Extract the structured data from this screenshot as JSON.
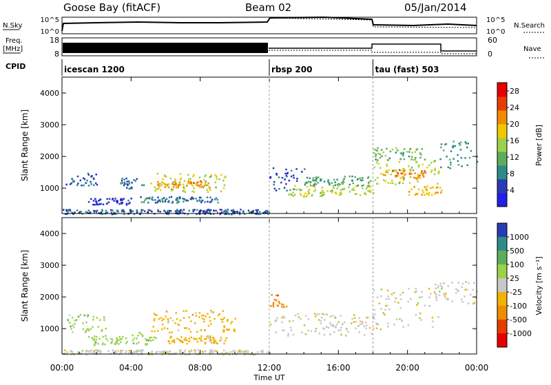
{
  "header": {
    "station": "Goose Bay (fitACF)",
    "beam": "Beam 02",
    "date": "05/Jan/2014"
  },
  "strip_labels": {
    "nsky": "N.Sky",
    "nsky_top": "10^5",
    "nsky_bottom": "10^0",
    "nsearch": "N.Search",
    "nsearch_top": "10^5",
    "nsearch_bottom": "10^0",
    "freq_1": "Freq.",
    "freq_2": "[MHz]",
    "freq_top": "18",
    "freq_bottom": "8",
    "nave": "Nave",
    "nave_top": "60",
    "nave_bottom": "0",
    "cpid": "CPID"
  },
  "cpid_segments": [
    {
      "label": "icescan 1200",
      "start_h": 0
    },
    {
      "label": "rbsp 200",
      "start_h": 12
    },
    {
      "label": "tau (fast) 503",
      "start_h": 18
    }
  ],
  "colors": {
    "power": [
      "#1f1fe6",
      "#2a3cb4",
      "#2f8a8a",
      "#5cae5c",
      "#9bd24a",
      "#f0c800",
      "#f08c00",
      "#e63c00",
      "#e60000"
    ],
    "velocity": [
      "#2a3cb4",
      "#2f8a8a",
      "#5cae5c",
      "#9bd24a",
      "#c8c8c8",
      "#f0b400",
      "#f08c00",
      "#e63c00",
      "#e60000"
    ],
    "ground": "#a0a0a0"
  },
  "chart_data": [
    {
      "type": "heatmap",
      "panel": "power",
      "ylabel": "Slant Range [km]",
      "yticks": [
        "1000",
        "2000",
        "3000",
        "4000"
      ],
      "ylim": [
        200,
        4500
      ],
      "xlim": [
        0,
        24
      ],
      "colorbar_label": "Power [dB]",
      "colorbar_ticks": [
        "4",
        "8",
        "12",
        "16",
        "20",
        "24",
        "28"
      ],
      "colorbar_range": [
        0,
        30
      ],
      "regions": [
        {
          "t0": 0.2,
          "t1": 2.0,
          "r0": 1100,
          "r1": 1500,
          "v": 6
        },
        {
          "t0": 1.5,
          "t1": 4.0,
          "r0": 500,
          "r1": 700,
          "v": 4
        },
        {
          "t0": 3.2,
          "t1": 4.8,
          "r0": 1000,
          "r1": 1350,
          "v": 8
        },
        {
          "t0": 5.0,
          "t1": 9.5,
          "r0": 900,
          "r1": 1500,
          "v": 16
        },
        {
          "t0": 5.5,
          "t1": 8.5,
          "r0": 1050,
          "r1": 1250,
          "v": 21
        },
        {
          "t0": 4.5,
          "t1": 9.0,
          "r0": 550,
          "r1": 750,
          "v": 8
        },
        {
          "t0": 0.0,
          "t1": 12.0,
          "r0": 200,
          "r1": 350,
          "v": 6
        },
        {
          "t0": 12.0,
          "t1": 14.0,
          "r0": 900,
          "r1": 1700,
          "v": 5
        },
        {
          "t0": 13.0,
          "t1": 18.0,
          "r0": 750,
          "r1": 1100,
          "v": 16
        },
        {
          "t0": 14.0,
          "t1": 18.0,
          "r0": 1100,
          "r1": 1400,
          "v": 10
        },
        {
          "t0": 18.0,
          "t1": 21.8,
          "r0": 1100,
          "r1": 1900,
          "v": 16
        },
        {
          "t0": 18.5,
          "t1": 21.0,
          "r0": 1300,
          "r1": 1600,
          "v": 22
        },
        {
          "t0": 18.0,
          "t1": 21.0,
          "r0": 1900,
          "r1": 2300,
          "v": 12
        },
        {
          "t0": 21.8,
          "t1": 24.0,
          "r0": 1600,
          "r1": 2500,
          "v": 10
        },
        {
          "t0": 20.0,
          "t1": 22.0,
          "r0": 800,
          "r1": 1100,
          "v": 20
        }
      ]
    },
    {
      "type": "heatmap",
      "panel": "velocity",
      "ylabel": "Slant Range [km]",
      "xlabel": "Time UT",
      "yticks": [
        "1000",
        "2000",
        "3000",
        "4000"
      ],
      "ylim": [
        200,
        4500
      ],
      "xlim": [
        0,
        24
      ],
      "xticks": [
        "00:00",
        "04:00",
        "08:00",
        "12:00",
        "16:00",
        "20:00",
        "00:00"
      ],
      "colorbar_label": "Velocity [m s⁻¹]",
      "colorbar_ticks": [
        "1000",
        "500",
        "100",
        "25",
        "-25",
        "-100",
        "-500",
        "-1000"
      ],
      "regions": [
        {
          "t0": 0.2,
          "t1": 2.5,
          "r0": 900,
          "r1": 1500,
          "c": 3
        },
        {
          "t0": 1.5,
          "t1": 4.0,
          "r0": 500,
          "r1": 800,
          "c": 3
        },
        {
          "t0": 5.0,
          "t1": 10.0,
          "r0": 900,
          "r1": 1600,
          "c": 5
        },
        {
          "t0": 6.0,
          "t1": 9.5,
          "r0": 550,
          "r1": 800,
          "c": 5
        },
        {
          "t0": 4.0,
          "t1": 5.5,
          "r0": 500,
          "r1": 900,
          "c": 3
        },
        {
          "t0": 0.0,
          "t1": 12.0,
          "r0": 200,
          "r1": 350,
          "c": 4
        },
        {
          "t0": 12.0,
          "t1": 18.0,
          "r0": 800,
          "r1": 1500,
          "c": 4
        },
        {
          "t0": 12.0,
          "t1": 13.0,
          "r0": 1700,
          "r1": 2100,
          "c": 6
        },
        {
          "t0": 18.0,
          "t1": 22.0,
          "r0": 1000,
          "r1": 2300,
          "c": 4
        },
        {
          "t0": 21.5,
          "t1": 24.0,
          "r0": 1800,
          "r1": 2500,
          "c": 4
        }
      ]
    }
  ]
}
